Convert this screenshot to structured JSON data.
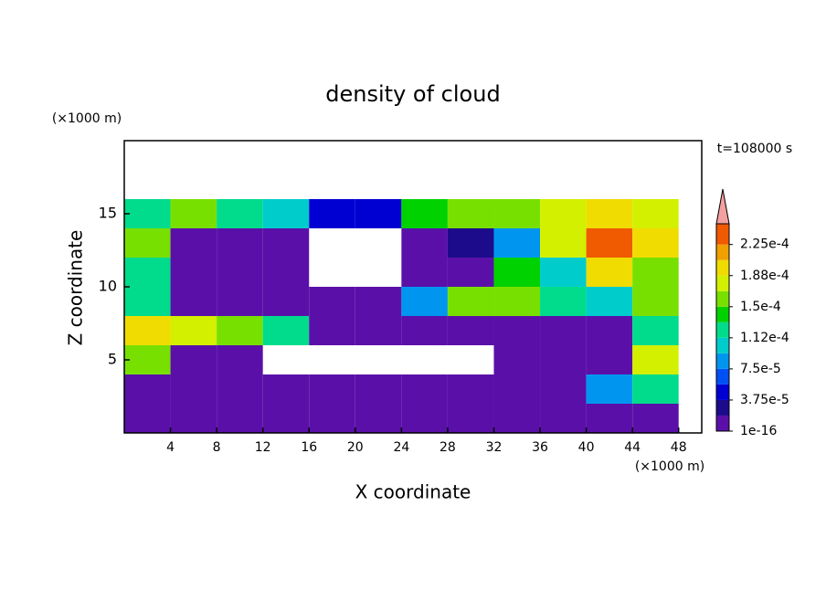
{
  "chart_data": {
    "type": "contour",
    "title": "density of cloud",
    "x_label": "X coordinate",
    "y_label": "Z coordinate",
    "x_unit": "(×1000 m)",
    "y_unit": "(×1000 m)",
    "time_label": "t=108000 s",
    "xlim": [
      0,
      50
    ],
    "ylim": [
      0,
      20
    ],
    "xticks": [
      4,
      8,
      12,
      16,
      20,
      24,
      28,
      32,
      36,
      40,
      44,
      48
    ],
    "yticks": [
      5,
      10,
      15
    ],
    "x": [
      2,
      6,
      10,
      14,
      18,
      22,
      26,
      30,
      34,
      38,
      42,
      46
    ],
    "y": [
      15,
      13,
      11,
      9,
      7,
      5,
      3,
      1
    ],
    "values": [
      [
        0.00013,
        0.00015,
        0.00012,
        0.0001,
        5e-05,
        4e-05,
        0.00014,
        0.00015,
        0.00016,
        0.00018,
        0.00019,
        0.00017
      ],
      [
        0.00016,
        1e-05,
        1e-05,
        1e-05,
        null,
        null,
        1e-05,
        2e-05,
        8e-05,
        0.00017,
        0.00023,
        0.0002
      ],
      [
        0.00012,
        1e-05,
        1e-05,
        1e-05,
        null,
        null,
        1e-05,
        1e-05,
        0.00014,
        0.0001,
        0.0002,
        0.00016
      ],
      [
        0.00013,
        1e-05,
        1e-05,
        1e-05,
        1e-05,
        1e-05,
        8e-05,
        0.00015,
        0.00016,
        0.00013,
        0.00011,
        0.00015
      ],
      [
        0.0002,
        0.00017,
        0.00016,
        0.00013,
        1e-05,
        1e-05,
        1e-05,
        1e-05,
        1e-05,
        1e-05,
        1e-05,
        0.00012
      ],
      [
        0.00015,
        1e-05,
        1e-05,
        null,
        null,
        null,
        null,
        null,
        1e-05,
        1e-05,
        1e-05,
        0.00018
      ],
      [
        1e-05,
        1e-05,
        1e-05,
        1e-05,
        1e-05,
        1e-05,
        1e-05,
        1e-05,
        1e-05,
        1e-05,
        8e-05,
        0.00012
      ],
      [
        1e-05,
        1e-05,
        1e-05,
        1e-05,
        1e-05,
        1e-05,
        1e-05,
        1e-05,
        1e-05,
        1e-05,
        1e-05,
        1e-05
      ]
    ],
    "levels": [
      1e-16,
      1.875e-05,
      3.75e-05,
      5.625e-05,
      7.5e-05,
      9.375e-05,
      0.0001125,
      0.00013125,
      0.00015,
      0.00016875,
      0.0001875,
      0.00020625,
      0.000225
    ],
    "colors": [
      "#5a10a8",
      "#1c0c8c",
      "#0000d2",
      "#0050f5",
      "#0096f0",
      "#00cccc",
      "#00dc8c",
      "#00d200",
      "#78e000",
      "#d2f000",
      "#f0dc00",
      "#f0a000",
      "#f05a00"
    ],
    "extend_color": "#f4a0a0",
    "clim": [
      1e-16,
      0.00025
    ],
    "cbar_ticks": [
      {
        "value": 1e-16,
        "label": "1e-16"
      },
      {
        "value": 3.75e-05,
        "label": "3.75e-5"
      },
      {
        "value": 7.5e-05,
        "label": "7.5e-5"
      },
      {
        "value": 0.0001125,
        "label": "1.12e-4"
      },
      {
        "value": 0.00015,
        "label": "1.5e-4"
      },
      {
        "value": 0.0001875,
        "label": "1.88e-4"
      },
      {
        "value": 0.000225,
        "label": "2.25e-4"
      }
    ]
  }
}
